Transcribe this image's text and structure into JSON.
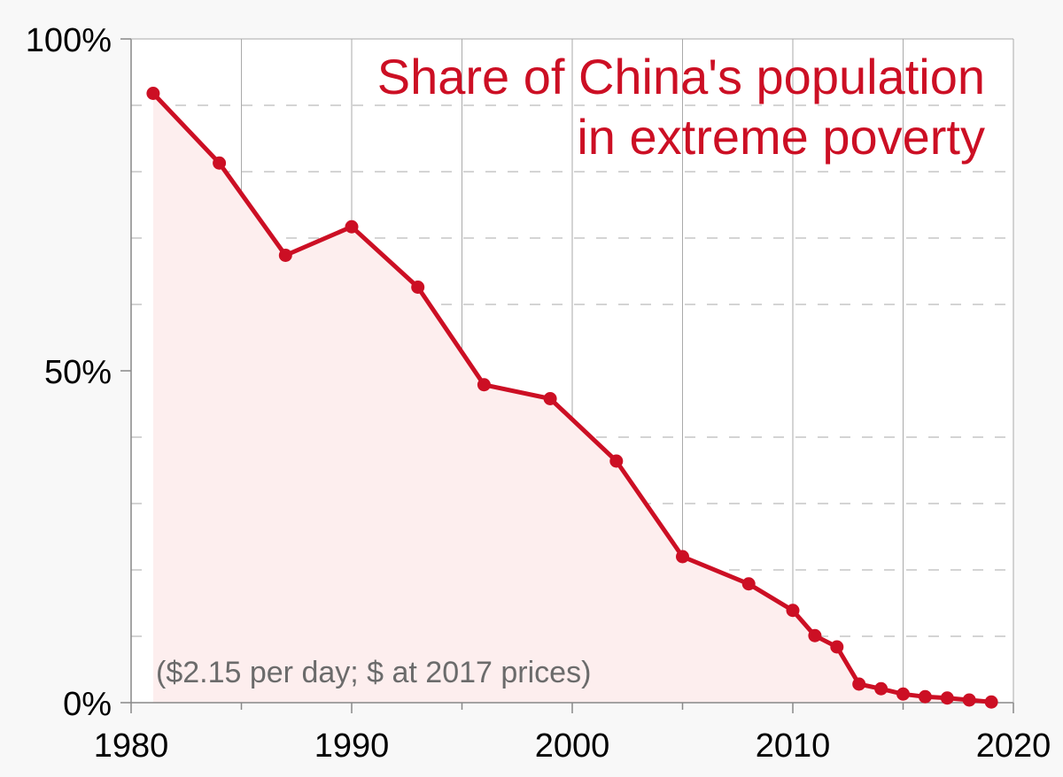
{
  "colors": {
    "series": "#cc0f24",
    "fill": "#fdeeee",
    "background": "#f8f8f8",
    "plot_background": "#ffffff",
    "note": "#6b6b6b",
    "grid": "#aaaaaa",
    "axis": "#888888"
  },
  "chart_data": {
    "type": "area",
    "title_lines": [
      "Share of China's population",
      "in extreme poverty"
    ],
    "annotation": "($2.15 per day; $ at 2017 prices)",
    "xlabel": "",
    "ylabel": "",
    "xlim": [
      1980,
      2020
    ],
    "ylim": [
      0,
      100
    ],
    "x_ticks": [
      1980,
      1990,
      2000,
      2010,
      2020
    ],
    "x_tick_labels": [
      "1980",
      "1990",
      "2000",
      "2010",
      "2020"
    ],
    "x_minor_grid": [
      1985,
      1995,
      2005,
      2015
    ],
    "y_ticks": [
      0,
      50,
      100
    ],
    "y_tick_labels": [
      "0%",
      "50%",
      "100%"
    ],
    "y_minor_grid": [
      10,
      20,
      30,
      40,
      60,
      70,
      80,
      90
    ],
    "grid": true,
    "series": [
      {
        "name": "Share of population in extreme poverty (%)",
        "x": [
          1981,
          1984,
          1987,
          1990,
          1993,
          1996,
          1999,
          2002,
          2005,
          2008,
          2010,
          2011,
          2012,
          2013,
          2014,
          2015,
          2016,
          2017,
          2018,
          2019
        ],
        "values": [
          91.8,
          81.3,
          67.4,
          71.7,
          62.6,
          47.9,
          45.8,
          36.4,
          22.0,
          17.9,
          13.9,
          10.1,
          8.4,
          2.8,
          2.1,
          1.3,
          0.9,
          0.7,
          0.4,
          0.1
        ]
      }
    ]
  }
}
